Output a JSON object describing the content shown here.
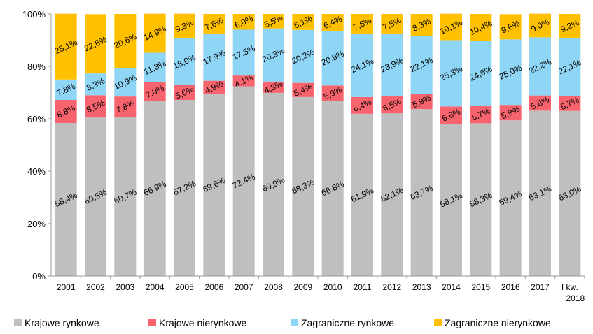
{
  "chart_data": {
    "type": "stacked_bar",
    "categories": [
      "2001",
      "2002",
      "2003",
      "2004",
      "2005",
      "2006",
      "2007",
      "2008",
      "2009",
      "2010",
      "2011",
      "2012",
      "2013",
      "2014",
      "2015",
      "2016",
      "2017",
      "I kw. 2018"
    ],
    "series": [
      {
        "name": "Krajowe rynkowe",
        "color": "#bfbfbf",
        "values": [
          58.4,
          60.5,
          60.7,
          66.9,
          67.2,
          69.6,
          72.4,
          69.9,
          68.3,
          66.8,
          61.9,
          62.1,
          63.7,
          58.1,
          58.3,
          59.4,
          63.1,
          63.0
        ],
        "value_labels": [
          "58,4%",
          "60,5%",
          "60,7%",
          "66,9%",
          "67,2%",
          "69,6%",
          "72,4%",
          "69,9%",
          "68,3%",
          "66,8%",
          "61,9%",
          "62,1%",
          "63,7%",
          "58,1%",
          "58,3%",
          "59,4%",
          "63,1%",
          "63,0%"
        ]
      },
      {
        "name": "Krajowe nierynkowe",
        "color": "#f7646e",
        "values": [
          8.8,
          8.5,
          7.8,
          7.0,
          5.6,
          4.9,
          4.1,
          4.3,
          5.4,
          5.9,
          6.4,
          6.5,
          5.9,
          6.6,
          6.7,
          5.9,
          5.8,
          5.7
        ],
        "value_labels": [
          "8,8%",
          "8,5%",
          "7,8%",
          "7,0%",
          "5,6%",
          "4,9%",
          "4,1%",
          "4,3%",
          "5,4%",
          "5,9%",
          "6,4%",
          "6,5%",
          "5,9%",
          "6,6%",
          "6,7%",
          "5,9%",
          "5,8%",
          "5,7%"
        ]
      },
      {
        "name": "Zagraniczne rynkowe",
        "color": "#8fd5f6",
        "values": [
          7.8,
          8.3,
          10.9,
          11.3,
          18.0,
          17.9,
          17.5,
          20.3,
          20.2,
          20.9,
          24.1,
          23.9,
          22.1,
          25.3,
          24.6,
          25.0,
          22.2,
          22.1
        ],
        "value_labels": [
          "7,8%",
          "8,3%",
          "10,9%",
          "11,3%",
          "18,0%",
          "17,9%",
          "17,5%",
          "20,3%",
          "20,2%",
          "20,9%",
          "24,1%",
          "23,9%",
          "22,1%",
          "25,3%",
          "24,6%",
          "25,0%",
          "22,2%",
          "22,1%"
        ]
      },
      {
        "name": "Zagraniczne nierynkowe",
        "color": "#ffc000",
        "values": [
          25.1,
          22.6,
          20.6,
          14.9,
          9.3,
          7.6,
          6.0,
          5.5,
          6.1,
          6.4,
          7.6,
          7.5,
          8.3,
          10.1,
          10.4,
          9.6,
          9.0,
          9.2
        ],
        "value_labels": [
          "25,1%",
          "22,6%",
          "20,6%",
          "14,9%",
          "9,3%",
          "7,6%",
          "6,0%",
          "5,5%",
          "6,1%",
          "6,4%",
          "7,6%",
          "7,5%",
          "8,3%",
          "10,1%",
          "10,4%",
          "9,6%",
          "9,0%",
          "9,2%"
        ]
      }
    ],
    "ylim": [
      0,
      100
    ],
    "yticks": [
      {
        "value": 0,
        "label": "0%"
      },
      {
        "value": 20,
        "label": "20%"
      },
      {
        "value": 40,
        "label": "40%"
      },
      {
        "value": 60,
        "label": "60%"
      },
      {
        "value": 80,
        "label": "80%"
      },
      {
        "value": 100,
        "label": "100%"
      }
    ],
    "grid": false,
    "legend": "bottom"
  }
}
